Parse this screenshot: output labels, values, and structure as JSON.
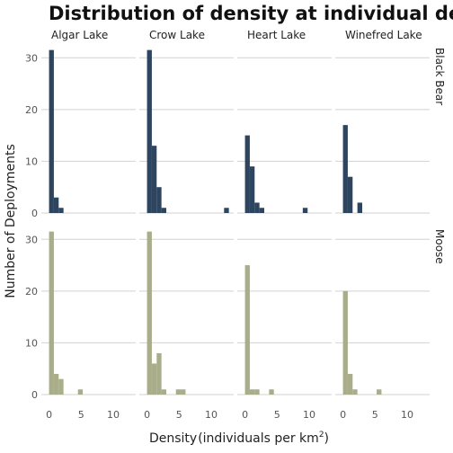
{
  "chart_data": {
    "type": "bar",
    "title": "Distribution of density at individual deployments",
    "xlabel_main": "Density",
    "xlabel_units": "(individuals per km",
    "xlabel_sup": "2",
    "xlabel_close": ")",
    "ylabel": "Number of Deployments",
    "columns": [
      "Algar Lake",
      "Crow Lake",
      "Heart Lake",
      "Winefred Lake"
    ],
    "rows": [
      "Black Bear",
      "Moose"
    ],
    "colors": {
      "Black Bear": "#2e4560",
      "Moose": "#a9ad8a"
    },
    "xlim": [
      -1.2,
      13.5
    ],
    "ylim": [
      0,
      33
    ],
    "x_ticks": [
      0,
      5,
      10
    ],
    "y_ticks": [
      0,
      10,
      20,
      30
    ],
    "bin_width": 0.75,
    "grid": true,
    "panels": [
      {
        "row": "Black Bear",
        "column": "Algar Lake",
        "bins": [
          [
            0,
            31.5
          ],
          [
            0.75,
            3
          ],
          [
            1.5,
            1
          ]
        ]
      },
      {
        "row": "Black Bear",
        "column": "Crow Lake",
        "bins": [
          [
            0,
            31.5
          ],
          [
            0.75,
            13
          ],
          [
            1.5,
            5
          ],
          [
            2.25,
            1
          ],
          [
            12,
            1
          ]
        ]
      },
      {
        "row": "Black Bear",
        "column": "Heart Lake",
        "bins": [
          [
            0,
            15
          ],
          [
            0.75,
            9
          ],
          [
            1.5,
            2
          ],
          [
            2.25,
            1
          ],
          [
            9,
            1
          ]
        ]
      },
      {
        "row": "Black Bear",
        "column": "Winefred Lake",
        "bins": [
          [
            0,
            17
          ],
          [
            0.75,
            7
          ],
          [
            2.25,
            2
          ]
        ]
      },
      {
        "row": "Moose",
        "column": "Algar Lake",
        "bins": [
          [
            0,
            31.5
          ],
          [
            0.75,
            4
          ],
          [
            1.5,
            3
          ],
          [
            4.5,
            1
          ]
        ]
      },
      {
        "row": "Moose",
        "column": "Crow Lake",
        "bins": [
          [
            0,
            31.5
          ],
          [
            0.75,
            6
          ],
          [
            1.5,
            8
          ],
          [
            2.25,
            1
          ],
          [
            4.5,
            1
          ],
          [
            5.25,
            1
          ]
        ]
      },
      {
        "row": "Moose",
        "column": "Heart Lake",
        "bins": [
          [
            0,
            25
          ],
          [
            0.75,
            1
          ],
          [
            1.5,
            1
          ],
          [
            3.75,
            1
          ]
        ]
      },
      {
        "row": "Moose",
        "column": "Winefred Lake",
        "bins": [
          [
            0,
            20
          ],
          [
            0.75,
            4
          ],
          [
            1.5,
            1
          ],
          [
            5.25,
            1
          ]
        ]
      }
    ]
  }
}
